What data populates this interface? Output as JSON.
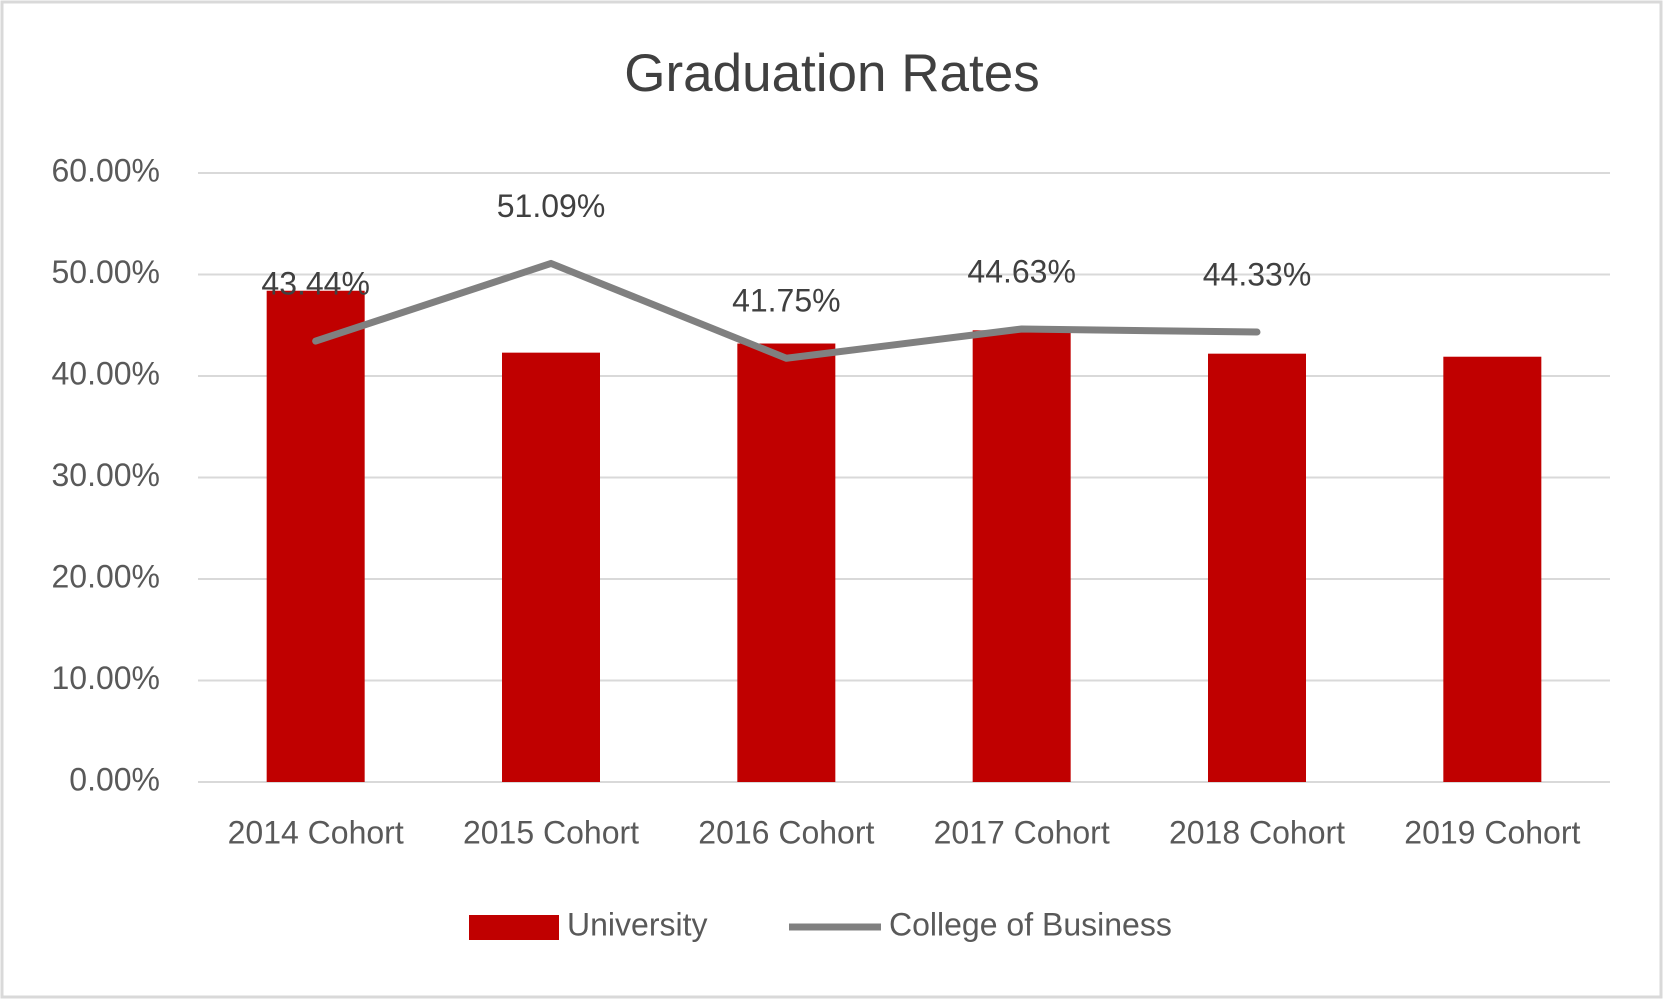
{
  "chart_data": {
    "type": "bar_line",
    "title": "Graduation Rates",
    "categories": [
      "2014 Cohort",
      "2015 Cohort",
      "2016 Cohort",
      "2017 Cohort",
      "2018 Cohort",
      "2019 Cohort"
    ],
    "series": [
      {
        "name": "University",
        "type": "bar",
        "color": "#c00000",
        "values": [
          48.4,
          42.3,
          43.2,
          44.5,
          42.2,
          41.9
        ]
      },
      {
        "name": "College of Business",
        "type": "line",
        "color": "#808080",
        "values": [
          43.44,
          51.09,
          41.75,
          44.63,
          44.33,
          null
        ],
        "value_labels": [
          "43.44%",
          "51.09%",
          "41.75%",
          "44.63%",
          "44.33%",
          null
        ]
      }
    ],
    "ylim": [
      0,
      60
    ],
    "yticks": [
      {
        "value": 0,
        "label": "0.00%"
      },
      {
        "value": 10,
        "label": "10.00%"
      },
      {
        "value": 20,
        "label": "20.00%"
      },
      {
        "value": 30,
        "label": "30.00%"
      },
      {
        "value": 40,
        "label": "40.00%"
      },
      {
        "value": 50,
        "label": "50.00%"
      },
      {
        "value": 60,
        "label": "60.00%"
      }
    ],
    "grid": true,
    "legend": "bottom"
  }
}
